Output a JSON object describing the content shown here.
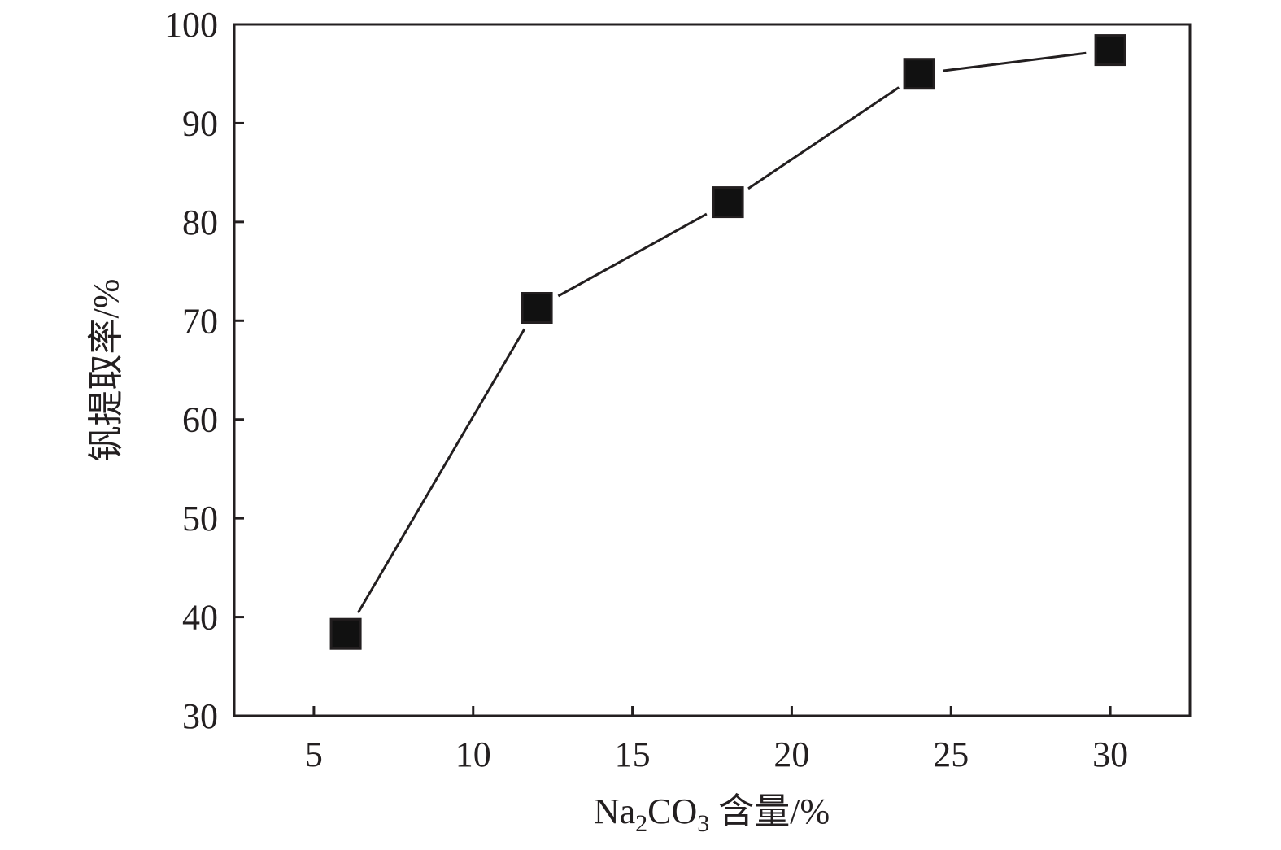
{
  "chart_data": {
    "type": "line",
    "title": "",
    "xlabel": "Na2CO3 含量/%",
    "xlabel_parts": {
      "prefix": "Na",
      "sub1": "2",
      "mid": "CO",
      "sub2": "3",
      "suffix": " 含量/%"
    },
    "ylabel": "钒提取率/%",
    "xlim": [
      2.5,
      32.5
    ],
    "ylim": [
      30,
      100
    ],
    "xticks": [
      5,
      10,
      15,
      20,
      25,
      30
    ],
    "yticks": [
      30,
      40,
      50,
      60,
      70,
      80,
      90,
      100
    ],
    "grid": false,
    "marker": "square",
    "colors": {
      "line": "#231f20",
      "marker": "#111111"
    },
    "series": [
      {
        "x": [
          6,
          12,
          18,
          24,
          30
        ],
        "y": [
          38.3,
          71.3,
          82.0,
          95.0,
          97.4
        ]
      }
    ]
  }
}
